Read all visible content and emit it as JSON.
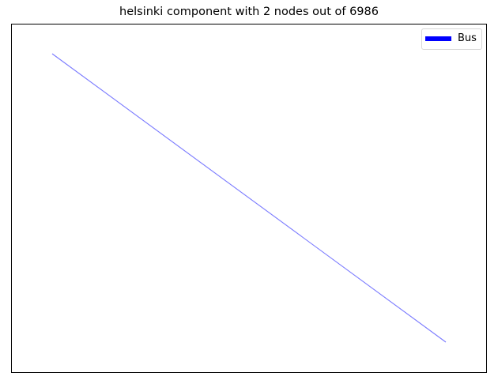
{
  "figure": {
    "title": "helsinki component with 2 nodes out of 6986"
  },
  "graph": {
    "nodes": [
      {
        "id": "a"
      },
      {
        "id": "b"
      }
    ],
    "edges": [
      {
        "source": "a",
        "target": "b",
        "mode": "Bus"
      }
    ]
  },
  "legend": {
    "placement": "top-right",
    "items": [
      {
        "label": "Bus",
        "color": "#0000ff"
      }
    ]
  },
  "style": {
    "edge_color": "#7a7aff",
    "frame_color": "#000000",
    "ticks": "none"
  }
}
